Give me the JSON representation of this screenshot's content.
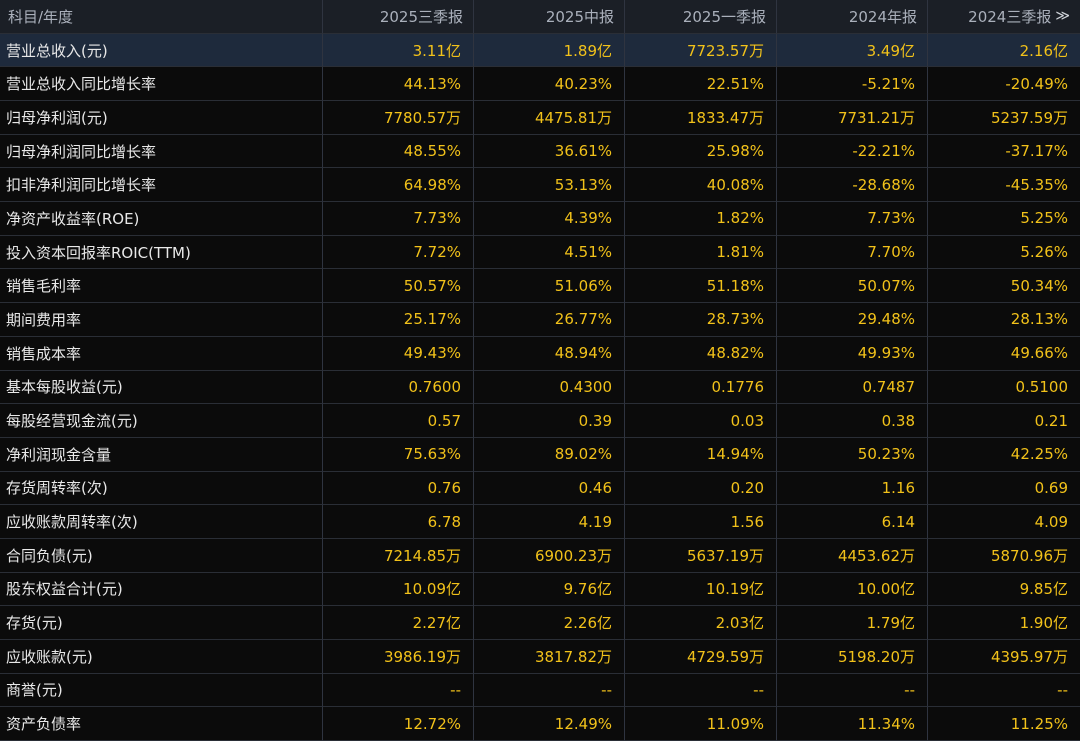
{
  "header": {
    "label": "科目/年度",
    "columns": [
      "2025三季报",
      "2025中报",
      "2025一季报",
      "2024年报",
      "2024三季报"
    ],
    "more_icon": "double-chevron-right-icon",
    "more_glyph": "≫"
  },
  "colors": {
    "value": "#f2c21a",
    "label": "#e8e8e8",
    "header_bg": "#1b1f26",
    "selected_row_bg": "#1e2a3c"
  },
  "selected_row": 0,
  "rows": [
    {
      "label": "营业总收入(元)",
      "values": [
        "3.11亿",
        "1.89亿",
        "7723.57万",
        "3.49亿",
        "2.16亿"
      ]
    },
    {
      "label": "营业总收入同比增长率",
      "values": [
        "44.13%",
        "40.23%",
        "22.51%",
        "-5.21%",
        "-20.49%"
      ]
    },
    {
      "label": "归母净利润(元)",
      "values": [
        "7780.57万",
        "4475.81万",
        "1833.47万",
        "7731.21万",
        "5237.59万"
      ]
    },
    {
      "label": "归母净利润同比增长率",
      "values": [
        "48.55%",
        "36.61%",
        "25.98%",
        "-22.21%",
        "-37.17%"
      ]
    },
    {
      "label": "扣非净利润同比增长率",
      "values": [
        "64.98%",
        "53.13%",
        "40.08%",
        "-28.68%",
        "-45.35%"
      ]
    },
    {
      "label": "净资产收益率(ROE)",
      "values": [
        "7.73%",
        "4.39%",
        "1.82%",
        "7.73%",
        "5.25%"
      ]
    },
    {
      "label": "投入资本回报率ROIC(TTM)",
      "values": [
        "7.72%",
        "4.51%",
        "1.81%",
        "7.70%",
        "5.26%"
      ]
    },
    {
      "label": "销售毛利率",
      "values": [
        "50.57%",
        "51.06%",
        "51.18%",
        "50.07%",
        "50.34%"
      ]
    },
    {
      "label": "期间费用率",
      "values": [
        "25.17%",
        "26.77%",
        "28.73%",
        "29.48%",
        "28.13%"
      ]
    },
    {
      "label": "销售成本率",
      "values": [
        "49.43%",
        "48.94%",
        "48.82%",
        "49.93%",
        "49.66%"
      ]
    },
    {
      "label": "基本每股收益(元)",
      "values": [
        "0.7600",
        "0.4300",
        "0.1776",
        "0.7487",
        "0.5100"
      ]
    },
    {
      "label": "每股经营现金流(元)",
      "values": [
        "0.57",
        "0.39",
        "0.03",
        "0.38",
        "0.21"
      ]
    },
    {
      "label": "净利润现金含量",
      "values": [
        "75.63%",
        "89.02%",
        "14.94%",
        "50.23%",
        "42.25%"
      ]
    },
    {
      "label": "存货周转率(次)",
      "values": [
        "0.76",
        "0.46",
        "0.20",
        "1.16",
        "0.69"
      ]
    },
    {
      "label": "应收账款周转率(次)",
      "values": [
        "6.78",
        "4.19",
        "1.56",
        "6.14",
        "4.09"
      ]
    },
    {
      "label": "合同负债(元)",
      "values": [
        "7214.85万",
        "6900.23万",
        "5637.19万",
        "4453.62万",
        "5870.96万"
      ]
    },
    {
      "label": "股东权益合计(元)",
      "values": [
        "10.09亿",
        "9.76亿",
        "10.19亿",
        "10.00亿",
        "9.85亿"
      ]
    },
    {
      "label": "存货(元)",
      "values": [
        "2.27亿",
        "2.26亿",
        "2.03亿",
        "1.79亿",
        "1.90亿"
      ]
    },
    {
      "label": "应收账款(元)",
      "values": [
        "3986.19万",
        "3817.82万",
        "4729.59万",
        "5198.20万",
        "4395.97万"
      ]
    },
    {
      "label": "商誉(元)",
      "values": [
        "--",
        "--",
        "--",
        "--",
        "--"
      ]
    },
    {
      "label": "资产负债率",
      "values": [
        "12.72%",
        "12.49%",
        "11.09%",
        "11.34%",
        "11.25%"
      ]
    }
  ]
}
